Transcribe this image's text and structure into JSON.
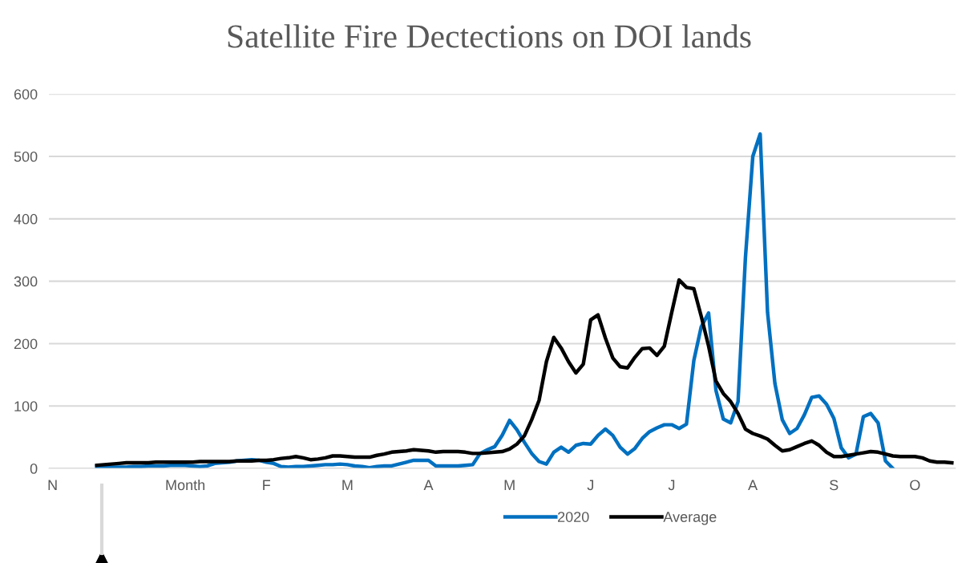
{
  "chart_data": {
    "type": "line",
    "title": "Satellite Fire Dectections on DOI lands",
    "categories": [
      "N",
      null,
      null,
      null,
      null,
      null,
      null,
      null,
      null,
      null,
      null,
      null,
      null,
      null,
      null,
      null,
      null,
      null,
      "Month",
      null,
      null,
      null,
      null,
      null,
      null,
      null,
      null,
      null,
      null,
      "F",
      null,
      null,
      null,
      null,
      null,
      null,
      null,
      null,
      null,
      null,
      "M",
      null,
      null,
      null,
      null,
      null,
      null,
      null,
      null,
      null,
      null,
      "A",
      null,
      null,
      null,
      null,
      null,
      null,
      null,
      null,
      null,
      null,
      "M",
      null,
      null,
      null,
      null,
      null,
      null,
      null,
      null,
      null,
      null,
      "J",
      null,
      null,
      null,
      null,
      null,
      null,
      null,
      null,
      null,
      null,
      "J",
      null,
      null,
      null,
      null,
      null,
      null,
      null,
      null,
      null,
      null,
      "A",
      null,
      null,
      null,
      null,
      null,
      null,
      null,
      null,
      null,
      null,
      "S",
      null,
      null,
      null,
      null,
      null,
      null,
      null,
      null,
      null,
      null,
      "O",
      null,
      null,
      null,
      null,
      null
    ],
    "ylim": [
      0,
      600
    ],
    "yticks": [
      0,
      100,
      200,
      300,
      400,
      500,
      600
    ],
    "grid": "y",
    "legend": "bottom",
    "marker": "none",
    "line_style": "solid",
    "series": [
      {
        "name": "2020",
        "color": "#0070c0",
        "values": [
          null,
          null,
          null,
          null,
          null,
          null,
          3,
          3,
          2,
          2,
          2,
          3,
          3,
          4,
          4,
          4,
          5,
          5,
          5,
          4,
          3,
          4,
          8,
          9,
          10,
          12,
          13,
          14,
          13,
          10,
          8,
          3,
          2,
          3,
          3,
          4,
          5,
          6,
          6,
          7,
          6,
          4,
          3,
          1,
          3,
          4,
          4,
          7,
          10,
          13,
          13,
          13,
          4,
          4,
          4,
          4,
          5,
          6,
          24,
          30,
          35,
          53,
          77,
          62,
          42,
          24,
          11,
          7,
          26,
          34,
          26,
          37,
          40,
          39,
          53,
          63,
          53,
          34,
          23,
          32,
          48,
          59,
          65,
          70,
          70,
          64,
          71,
          173,
          227,
          249,
          125,
          79,
          73,
          107,
          338,
          500,
          536,
          250,
          136,
          78,
          56,
          64,
          86,
          114,
          116,
          103,
          80,
          33,
          17,
          23,
          83,
          88,
          73,
          12,
          0,
          null,
          null,
          null,
          null,
          null,
          null,
          null,
          null
        ]
      },
      {
        "name": "Average",
        "color": "#000000",
        "values": [
          null,
          null,
          null,
          null,
          null,
          null,
          5,
          6,
          7,
          8,
          9,
          9,
          9,
          9,
          10,
          10,
          10,
          10,
          10,
          10,
          11,
          11,
          11,
          11,
          11,
          12,
          12,
          12,
          13,
          13,
          14,
          16,
          17,
          19,
          17,
          14,
          15,
          17,
          20,
          20,
          19,
          18,
          18,
          18,
          21,
          23,
          26,
          27,
          28,
          30,
          29,
          28,
          26,
          27,
          27,
          27,
          26,
          24,
          24,
          25,
          26,
          27,
          31,
          39,
          52,
          78,
          109,
          171,
          210,
          193,
          171,
          153,
          167,
          238,
          246,
          209,
          177,
          163,
          161,
          178,
          192,
          193,
          181,
          196,
          250,
          302,
          290,
          288,
          244,
          196,
          140,
          120,
          107,
          88,
          63,
          56,
          52,
          47,
          37,
          28,
          30,
          35,
          40,
          44,
          37,
          26,
          19,
          19,
          21,
          23,
          25,
          27,
          26,
          23,
          20,
          19,
          19,
          19,
          17,
          12,
          10,
          10,
          9
        ]
      }
    ]
  }
}
